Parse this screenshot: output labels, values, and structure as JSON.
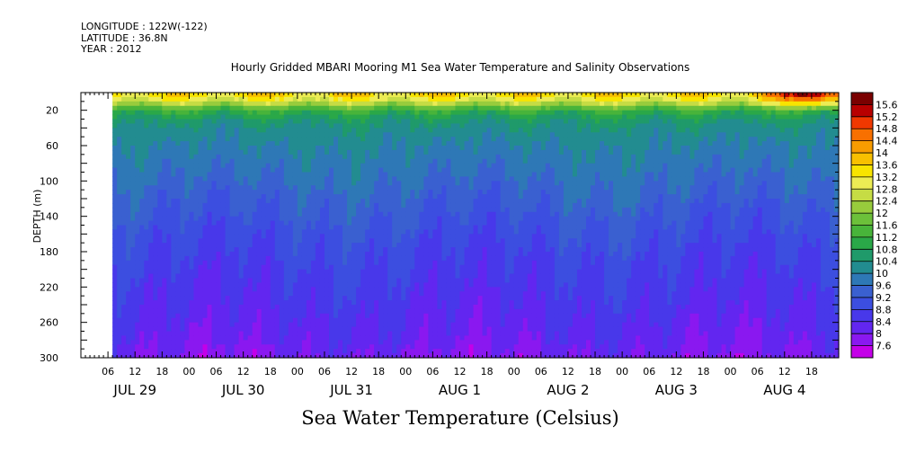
{
  "header": {
    "longitude": "LONGITUDE : 122W(-122)",
    "latitude": "LATITUDE : 36.8N",
    "year": "YEAR : 2012"
  },
  "chart_data": {
    "type": "heatmap",
    "title": "Hourly Gridded MBARI Mooring M1 Sea Water Temperature and Salinity Observations",
    "xlabel": "Sea Water Temperature (Celsius)",
    "ylabel": "DEPTH (m)",
    "y_axis": {
      "range": [
        0,
        300
      ],
      "inverted": true,
      "ticks": [
        20,
        60,
        100,
        140,
        180,
        220,
        260,
        300
      ]
    },
    "x_axis": {
      "units": "hours since 2012-07-28 00:00",
      "range": [
        0,
        168
      ],
      "hour_ticks": [
        {
          "h": 6,
          "label": "06"
        },
        {
          "h": 12,
          "label": "12"
        },
        {
          "h": 18,
          "label": "18"
        },
        {
          "h": 24,
          "label": "00"
        },
        {
          "h": 30,
          "label": "06"
        },
        {
          "h": 36,
          "label": "12"
        },
        {
          "h": 42,
          "label": "18"
        },
        {
          "h": 48,
          "label": "00"
        },
        {
          "h": 54,
          "label": "06"
        },
        {
          "h": 60,
          "label": "12"
        },
        {
          "h": 66,
          "label": "18"
        },
        {
          "h": 72,
          "label": "00"
        },
        {
          "h": 78,
          "label": "06"
        },
        {
          "h": 84,
          "label": "12"
        },
        {
          "h": 90,
          "label": "18"
        },
        {
          "h": 96,
          "label": "00"
        },
        {
          "h": 102,
          "label": "06"
        },
        {
          "h": 108,
          "label": "12"
        },
        {
          "h": 114,
          "label": "18"
        },
        {
          "h": 120,
          "label": "00"
        },
        {
          "h": 126,
          "label": "06"
        },
        {
          "h": 132,
          "label": "12"
        },
        {
          "h": 138,
          "label": "18"
        },
        {
          "h": 144,
          "label": "00"
        },
        {
          "h": 150,
          "label": "06"
        },
        {
          "h": 156,
          "label": "12"
        },
        {
          "h": 162,
          "label": "18"
        }
      ],
      "day_labels": [
        {
          "h": 12,
          "label": "JUL 29"
        },
        {
          "h": 36,
          "label": "JUL 30"
        },
        {
          "h": 60,
          "label": "JUL 31"
        },
        {
          "h": 84,
          "label": "AUG  1"
        },
        {
          "h": 108,
          "label": "AUG  2"
        },
        {
          "h": 132,
          "label": "AUG  3"
        },
        {
          "h": 156,
          "label": "AUG  4"
        }
      ],
      "data_start_hour": 7
    },
    "colorbar": {
      "levels": [
        7.6,
        8,
        8.4,
        8.8,
        9.2,
        9.6,
        10,
        10.4,
        10.8,
        11.2,
        11.6,
        12,
        12.4,
        12.8,
        13.2,
        13.6,
        14,
        14.4,
        14.8,
        15.2,
        15.6
      ],
      "labels": [
        "7.6",
        "8",
        "8.4",
        "8.8",
        "9.2",
        "9.6",
        "10",
        "10.4",
        "10.8",
        "11.2",
        "11.6",
        "12",
        "12.4",
        "12.8",
        "13.2",
        "13.6",
        "14",
        "14.4",
        "14.8",
        "15.2",
        "15.6"
      ],
      "colors": [
        "#c400e8",
        "#8a18f0",
        "#6226f0",
        "#4838ea",
        "#3c4ee0",
        "#3a60d0",
        "#2e78b6",
        "#228c90",
        "#1f9a6a",
        "#2aa848",
        "#48b43a",
        "#6cc03a",
        "#98cc3c",
        "#c6dc44",
        "#ecec54",
        "#f8e400",
        "#f8c000",
        "#f89c00",
        "#f87000",
        "#f03800",
        "#b80000",
        "#7a0000"
      ]
    },
    "profile": {
      "depths_m": [
        0,
        10,
        15,
        20,
        30,
        40,
        60,
        80,
        100,
        130,
        160,
        200,
        240,
        280,
        300
      ],
      "typical_temp_c": [
        13.6,
        12.8,
        12.0,
        11.2,
        10.6,
        10.3,
        10.0,
        9.8,
        9.6,
        9.3,
        9.0,
        8.7,
        8.45,
        8.15,
        7.95
      ]
    },
    "warm_surface_event": {
      "start_hour": 147,
      "end_hour": 168,
      "peak_hour": 162,
      "peak_temp_c": 15.4
    }
  }
}
